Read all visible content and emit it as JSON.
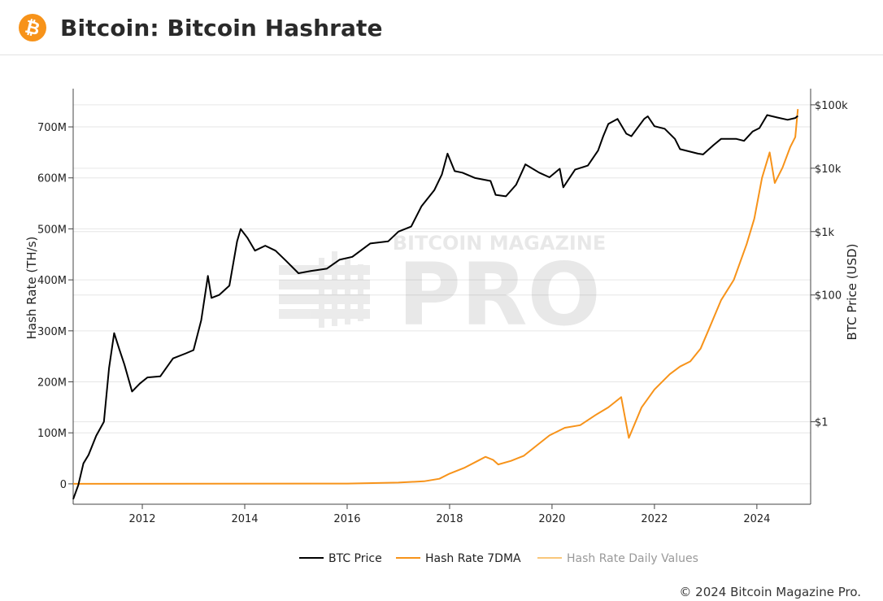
{
  "page": {
    "title": "Bitcoin: Bitcoin Hashrate",
    "copyright": "© 2024 Bitcoin Magazine Pro.",
    "watermark_top": "BITCOIN MAGAZINE",
    "watermark_main": "PRO",
    "brand_color": "#f7931a"
  },
  "chart_data": {
    "type": "line",
    "title": "",
    "xlabel": "",
    "ylabel": "Hash Rate (TH/s)",
    "y2label": "BTC Price (USD)",
    "xlim": [
      2010.65,
      2025.05
    ],
    "ylim": [
      -40,
      775
    ],
    "x_ticks": [
      {
        "value": 2012,
        "label": "2012"
      },
      {
        "value": 2014,
        "label": "2014"
      },
      {
        "value": 2016,
        "label": "2016"
      },
      {
        "value": 2018,
        "label": "2018"
      },
      {
        "value": 2020,
        "label": "2020"
      },
      {
        "value": 2022,
        "label": "2022"
      },
      {
        "value": 2024,
        "label": "2024"
      }
    ],
    "y_ticks": [
      {
        "value": 0,
        "label": "0"
      },
      {
        "value": 100,
        "label": "100M"
      },
      {
        "value": 200,
        "label": "200M"
      },
      {
        "value": 300,
        "label": "300M"
      },
      {
        "value": 400,
        "label": "400M"
      },
      {
        "value": 500,
        "label": "500M"
      },
      {
        "value": 600,
        "label": "600M"
      },
      {
        "value": 700,
        "label": "700M"
      }
    ],
    "y2_scale": "log",
    "y2lim": [
      0.05,
      180000
    ],
    "y2_ticks": [
      {
        "value": 1,
        "label": "$1"
      },
      {
        "value": 100,
        "label": "$100"
      },
      {
        "value": 1000,
        "label": "$1k"
      },
      {
        "value": 10000,
        "label": "$10k"
      },
      {
        "value": 100000,
        "label": "$100k"
      }
    ],
    "grid": true,
    "legend_position": "bottom",
    "series": [
      {
        "name": "BTC Price",
        "axis": "y2",
        "color": "#000000",
        "points": [
          [
            2010.65,
            0.06
          ],
          [
            2010.75,
            0.1
          ],
          [
            2010.85,
            0.22
          ],
          [
            2010.95,
            0.3
          ],
          [
            2011.1,
            0.6
          ],
          [
            2011.25,
            1.0
          ],
          [
            2011.35,
            7.0
          ],
          [
            2011.45,
            25.0
          ],
          [
            2011.55,
            14.0
          ],
          [
            2011.65,
            8.0
          ],
          [
            2011.8,
            3.0
          ],
          [
            2011.95,
            4.0
          ],
          [
            2012.1,
            5.0
          ],
          [
            2012.35,
            5.2
          ],
          [
            2012.6,
            10.0
          ],
          [
            2012.85,
            12.0
          ],
          [
            2013.0,
            13.5
          ],
          [
            2013.15,
            40.0
          ],
          [
            2013.28,
            200.0
          ],
          [
            2013.35,
            90.0
          ],
          [
            2013.5,
            100.0
          ],
          [
            2013.7,
            140.0
          ],
          [
            2013.85,
            700.0
          ],
          [
            2013.92,
            1100.0
          ],
          [
            2014.05,
            800.0
          ],
          [
            2014.2,
            500.0
          ],
          [
            2014.4,
            600.0
          ],
          [
            2014.6,
            500.0
          ],
          [
            2014.8,
            350.0
          ],
          [
            2015.05,
            220.0
          ],
          [
            2015.3,
            240.0
          ],
          [
            2015.6,
            260.0
          ],
          [
            2015.85,
            360.0
          ],
          [
            2016.1,
            400.0
          ],
          [
            2016.45,
            650.0
          ],
          [
            2016.8,
            700.0
          ],
          [
            2017.0,
            1000.0
          ],
          [
            2017.25,
            1200.0
          ],
          [
            2017.45,
            2500.0
          ],
          [
            2017.7,
            4500.0
          ],
          [
            2017.85,
            8000.0
          ],
          [
            2017.96,
            17000.0
          ],
          [
            2018.1,
            9000.0
          ],
          [
            2018.25,
            8500.0
          ],
          [
            2018.5,
            7000.0
          ],
          [
            2018.8,
            6300.0
          ],
          [
            2018.9,
            3800.0
          ],
          [
            2019.1,
            3600.0
          ],
          [
            2019.3,
            5500.0
          ],
          [
            2019.48,
            11500.0
          ],
          [
            2019.75,
            8500.0
          ],
          [
            2019.95,
            7200.0
          ],
          [
            2020.15,
            9800.0
          ],
          [
            2020.22,
            5000.0
          ],
          [
            2020.45,
            9500.0
          ],
          [
            2020.7,
            11000.0
          ],
          [
            2020.9,
            19000.0
          ],
          [
            2021.0,
            32000.0
          ],
          [
            2021.1,
            50000.0
          ],
          [
            2021.28,
            60000.0
          ],
          [
            2021.45,
            35000.0
          ],
          [
            2021.55,
            32000.0
          ],
          [
            2021.8,
            60000.0
          ],
          [
            2021.87,
            66000.0
          ],
          [
            2022.0,
            46000.0
          ],
          [
            2022.2,
            42000.0
          ],
          [
            2022.4,
            29000.0
          ],
          [
            2022.5,
            20000.0
          ],
          [
            2022.85,
            17000.0
          ],
          [
            2022.95,
            16500.0
          ],
          [
            2023.15,
            23000.0
          ],
          [
            2023.3,
            29000.0
          ],
          [
            2023.6,
            29000.0
          ],
          [
            2023.75,
            27000.0
          ],
          [
            2023.92,
            38000.0
          ],
          [
            2024.05,
            43000.0
          ],
          [
            2024.2,
            69000.0
          ],
          [
            2024.4,
            63000.0
          ],
          [
            2024.6,
            58000.0
          ],
          [
            2024.75,
            62000.0
          ],
          [
            2024.8,
            67000.0
          ]
        ]
      },
      {
        "name": "Hash Rate 7DMA",
        "axis": "y",
        "color": "#f7931a",
        "points": [
          [
            2010.65,
            0
          ],
          [
            2016.0,
            0.5
          ],
          [
            2016.5,
            1.5
          ],
          [
            2017.0,
            2.5
          ],
          [
            2017.5,
            5
          ],
          [
            2017.8,
            10
          ],
          [
            2018.0,
            20
          ],
          [
            2018.3,
            32
          ],
          [
            2018.55,
            45
          ],
          [
            2018.7,
            53
          ],
          [
            2018.85,
            47
          ],
          [
            2018.95,
            38
          ],
          [
            2019.2,
            45
          ],
          [
            2019.45,
            55
          ],
          [
            2019.7,
            75
          ],
          [
            2019.95,
            95
          ],
          [
            2020.25,
            110
          ],
          [
            2020.55,
            115
          ],
          [
            2020.85,
            135
          ],
          [
            2021.1,
            150
          ],
          [
            2021.35,
            170
          ],
          [
            2021.5,
            90
          ],
          [
            2021.75,
            150
          ],
          [
            2022.0,
            185
          ],
          [
            2022.3,
            215
          ],
          [
            2022.5,
            230
          ],
          [
            2022.7,
            240
          ],
          [
            2022.9,
            265
          ],
          [
            2023.05,
            300
          ],
          [
            2023.3,
            360
          ],
          [
            2023.55,
            400
          ],
          [
            2023.8,
            470
          ],
          [
            2023.95,
            520
          ],
          [
            2024.1,
            600
          ],
          [
            2024.25,
            650
          ],
          [
            2024.35,
            590
          ],
          [
            2024.5,
            620
          ],
          [
            2024.65,
            660
          ],
          [
            2024.75,
            680
          ],
          [
            2024.8,
            735
          ]
        ]
      },
      {
        "name": "Hash Rate Daily Values",
        "axis": "y",
        "color": "#f9c77b"
      }
    ]
  }
}
